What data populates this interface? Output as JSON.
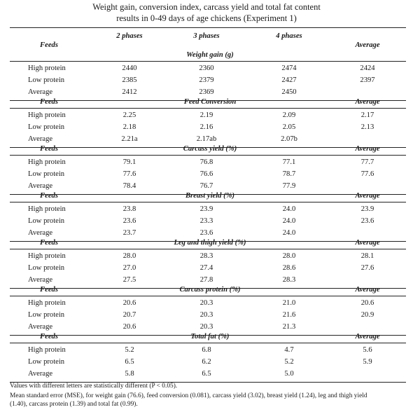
{
  "title": {
    "line1": "Weight gain, conversion index, carcass yield and total fat content",
    "line2": "results in 0-49 days of age chickens (Experiment 1)"
  },
  "header": {
    "feeds": "Feeds",
    "phase2": "2 phases",
    "phase3": "3 phases",
    "phase4": "4 phases",
    "average": "Average"
  },
  "sections": [
    {
      "label": "Weight gain (g)",
      "rows": [
        {
          "feed": "High protein",
          "p2": "2440",
          "p3": "2360",
          "p4": "2474",
          "avg": "2424"
        },
        {
          "feed": "Low protein",
          "p2": "2385",
          "p3": "2379",
          "p4": "2427",
          "avg": "2397"
        },
        {
          "feed": "Average",
          "p2": "2412",
          "p3": "2369",
          "p4": "2450",
          "avg": ""
        }
      ]
    },
    {
      "label": "Feed Conversion",
      "rows": [
        {
          "feed": "High protein",
          "p2": "2.25",
          "p3": "2.19",
          "p4": "2.09",
          "avg": "2.17"
        },
        {
          "feed": "Low protein",
          "p2": "2.18",
          "p3": "2.16",
          "p4": "2.05",
          "avg": "2.13"
        },
        {
          "feed": "Average",
          "p2": "2.21a",
          "p3": "2.17ab",
          "p4": "2.07b",
          "avg": ""
        }
      ]
    },
    {
      "label": "Carcass yield (%)",
      "rows": [
        {
          "feed": "High protein",
          "p2": "79.1",
          "p3": "76.8",
          "p4": "77.1",
          "avg": "77.7"
        },
        {
          "feed": "Low protein",
          "p2": "77.6",
          "p3": "76.6",
          "p4": "78.7",
          "avg": "77.6"
        },
        {
          "feed": "Average",
          "p2": "78.4",
          "p3": "76.7",
          "p4": "77.9",
          "avg": ""
        }
      ]
    },
    {
      "label": "Breast yield (%)",
      "rows": [
        {
          "feed": "High protein",
          "p2": "23.8",
          "p3": "23.9",
          "p4": "24.0",
          "avg": "23.9"
        },
        {
          "feed": "Low protein",
          "p2": "23.6",
          "p3": "23.3",
          "p4": "24.0",
          "avg": "23.6"
        },
        {
          "feed": "Average",
          "p2": "23.7",
          "p3": "23.6",
          "p4": "24.0",
          "avg": ""
        }
      ]
    },
    {
      "label": "Leg and thigh yield (%)",
      "rows": [
        {
          "feed": "High protein",
          "p2": "28.0",
          "p3": "28.3",
          "p4": "28.0",
          "avg": "28.1"
        },
        {
          "feed": "Low protein",
          "p2": "27.0",
          "p3": "27.4",
          "p4": "28.6",
          "avg": "27.6"
        },
        {
          "feed": "Average",
          "p2": "27.5",
          "p3": "27.8",
          "p4": "28.3",
          "avg": ""
        }
      ]
    },
    {
      "label": "Carcass protein (%)",
      "rows": [
        {
          "feed": "High protein",
          "p2": "20.6",
          "p3": "20.3",
          "p4": "21.0",
          "avg": "20.6"
        },
        {
          "feed": "Low protein",
          "p2": "20.7",
          "p3": "20.3",
          "p4": "21.6",
          "avg": "20.9"
        },
        {
          "feed": "Average",
          "p2": "20.6",
          "p3": "20.3",
          "p4": "21.3",
          "avg": ""
        }
      ]
    },
    {
      "label": "Total fat (%)",
      "rows": [
        {
          "feed": "High protein",
          "p2": "5.2",
          "p3": "6.8",
          "p4": "4.7",
          "avg": "5.6"
        },
        {
          "feed": "Low protein",
          "p2": "6.5",
          "p3": "6.2",
          "p4": "5.2",
          "avg": "5.9"
        },
        {
          "feed": "Average",
          "p2": "5.8",
          "p3": "6.5",
          "p4": "5.0",
          "avg": ""
        }
      ]
    }
  ],
  "footnotes": {
    "line1": "Values with different letters are statistically different (P < 0.05).",
    "line2": "Mean standard error (MSE), for weight gain (76.6), feed conversion (0.081), carcass yield (3.02), breast yield (1.24), leg and thigh yield",
    "line3": "(1.40), carcass protein (1.39) and total fat (0.99)."
  }
}
